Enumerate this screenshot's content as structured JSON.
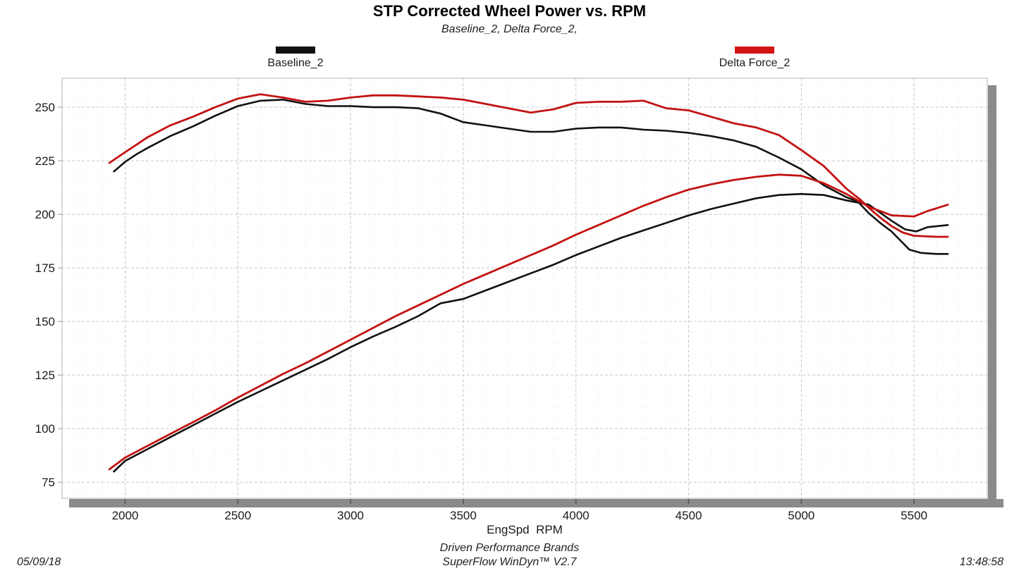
{
  "header": {
    "title": "STP Corrected Wheel Power vs. RPM",
    "subtitle": "Baseline_2, Delta Force_2,"
  },
  "legend": [
    {
      "label": "Baseline_2",
      "color": "#111111"
    },
    {
      "label": "Delta Force_2",
      "color": "#d31414"
    }
  ],
  "footer": {
    "brand_line": "Driven Performance Brands",
    "software_line": "SuperFlow WinDyn™ V2.7",
    "date": "05/09/18",
    "time": "13:48:58"
  },
  "chart_data": {
    "type": "line",
    "title": "STP Corrected Wheel Power vs. RPM",
    "subtitle": "Baseline_2, Delta Force_2,",
    "xlabel": "EngSpd  RPM",
    "ylabel": "",
    "xlim": [
      1720,
      5825
    ],
    "ylim": [
      67.5,
      263.5
    ],
    "x_ticks": [
      2000,
      2500,
      3000,
      3500,
      4000,
      4500,
      5000,
      5500
    ],
    "y_ticks": [
      75,
      100,
      125,
      150,
      175,
      200,
      225,
      250
    ],
    "x_minor_step": 100,
    "y_minor_step": 5,
    "grid": true,
    "legend_position": "top",
    "series": [
      {
        "name": "Baseline_2_upper",
        "legend": "Baseline_2",
        "color": "#111111",
        "width": 2.6,
        "points": [
          [
            1950,
            220
          ],
          [
            2000,
            224.5
          ],
          [
            2050,
            228
          ],
          [
            2100,
            231
          ],
          [
            2200,
            236.5
          ],
          [
            2300,
            241
          ],
          [
            2400,
            246
          ],
          [
            2500,
            250.5
          ],
          [
            2600,
            253
          ],
          [
            2700,
            253.5
          ],
          [
            2800,
            251.5
          ],
          [
            2900,
            250.5
          ],
          [
            3000,
            250.5
          ],
          [
            3100,
            250
          ],
          [
            3200,
            250
          ],
          [
            3300,
            249.5
          ],
          [
            3400,
            247
          ],
          [
            3450,
            245
          ],
          [
            3500,
            243
          ],
          [
            3600,
            241.5
          ],
          [
            3700,
            240
          ],
          [
            3800,
            238.5
          ],
          [
            3900,
            238.5
          ],
          [
            4000,
            240
          ],
          [
            4100,
            240.5
          ],
          [
            4200,
            240.5
          ],
          [
            4300,
            239.5
          ],
          [
            4400,
            239
          ],
          [
            4500,
            238
          ],
          [
            4600,
            236.5
          ],
          [
            4700,
            234.5
          ],
          [
            4800,
            231.5
          ],
          [
            4900,
            226.5
          ],
          [
            5000,
            221
          ],
          [
            5100,
            213.5
          ],
          [
            5200,
            208
          ],
          [
            5250,
            206
          ],
          [
            5300,
            200.5
          ],
          [
            5350,
            196
          ],
          [
            5400,
            192
          ],
          [
            5480,
            183.5
          ],
          [
            5530,
            182
          ],
          [
            5600,
            181.5
          ],
          [
            5650,
            181.5
          ]
        ]
      },
      {
        "name": "Baseline_2_lower",
        "legend": "Baseline_2",
        "color": "#111111",
        "width": 2.6,
        "points": [
          [
            1950,
            80
          ],
          [
            2000,
            85
          ],
          [
            2100,
            90.5
          ],
          [
            2200,
            96
          ],
          [
            2300,
            101.5
          ],
          [
            2400,
            107
          ],
          [
            2500,
            112.5
          ],
          [
            2600,
            117.5
          ],
          [
            2700,
            122.5
          ],
          [
            2800,
            127.5
          ],
          [
            2900,
            132.5
          ],
          [
            3000,
            138
          ],
          [
            3100,
            143
          ],
          [
            3200,
            147.5
          ],
          [
            3300,
            152.5
          ],
          [
            3400,
            158.5
          ],
          [
            3500,
            160.5
          ],
          [
            3600,
            164.5
          ],
          [
            3700,
            168.5
          ],
          [
            3800,
            172.5
          ],
          [
            3900,
            176.5
          ],
          [
            4000,
            181
          ],
          [
            4100,
            185
          ],
          [
            4200,
            189
          ],
          [
            4300,
            192.5
          ],
          [
            4400,
            196
          ],
          [
            4500,
            199.5
          ],
          [
            4600,
            202.5
          ],
          [
            4700,
            205
          ],
          [
            4800,
            207.5
          ],
          [
            4900,
            209
          ],
          [
            5000,
            209.5
          ],
          [
            5100,
            209
          ],
          [
            5200,
            206.5
          ],
          [
            5300,
            204.5
          ],
          [
            5400,
            197
          ],
          [
            5460,
            193
          ],
          [
            5510,
            192
          ],
          [
            5560,
            194
          ],
          [
            5650,
            195
          ]
        ]
      },
      {
        "name": "Delta_Force_2_upper",
        "legend": "Delta Force_2",
        "color": "#c31212",
        "width": 2.8,
        "points": [
          [
            1930,
            224
          ],
          [
            2000,
            229
          ],
          [
            2050,
            232.5
          ],
          [
            2100,
            236
          ],
          [
            2200,
            241.5
          ],
          [
            2300,
            245.5
          ],
          [
            2400,
            250
          ],
          [
            2500,
            254
          ],
          [
            2600,
            256
          ],
          [
            2700,
            254.5
          ],
          [
            2800,
            252.5
          ],
          [
            2900,
            253
          ],
          [
            3000,
            254.5
          ],
          [
            3100,
            255.5
          ],
          [
            3200,
            255.5
          ],
          [
            3300,
            255
          ],
          [
            3400,
            254.5
          ],
          [
            3500,
            253.5
          ],
          [
            3600,
            251.5
          ],
          [
            3700,
            249.5
          ],
          [
            3800,
            247.5
          ],
          [
            3900,
            249
          ],
          [
            4000,
            252
          ],
          [
            4100,
            252.5
          ],
          [
            4200,
            252.5
          ],
          [
            4300,
            253
          ],
          [
            4400,
            249.5
          ],
          [
            4500,
            248.5
          ],
          [
            4600,
            245.5
          ],
          [
            4700,
            242.5
          ],
          [
            4800,
            240.5
          ],
          [
            4900,
            237
          ],
          [
            5000,
            230
          ],
          [
            5100,
            222.5
          ],
          [
            5200,
            212
          ],
          [
            5260,
            207
          ],
          [
            5300,
            203
          ],
          [
            5350,
            198.5
          ],
          [
            5400,
            194.5
          ],
          [
            5450,
            191.5
          ],
          [
            5500,
            190
          ],
          [
            5600,
            189.5
          ],
          [
            5650,
            189.5
          ]
        ]
      },
      {
        "name": "Delta_Force_2_lower",
        "legend": "Delta Force_2",
        "color": "#c31212",
        "width": 2.8,
        "points": [
          [
            1930,
            81
          ],
          [
            2000,
            86.5
          ],
          [
            2100,
            92
          ],
          [
            2200,
            97.5
          ],
          [
            2300,
            103
          ],
          [
            2400,
            108.5
          ],
          [
            2500,
            114.5
          ],
          [
            2600,
            120
          ],
          [
            2700,
            125.5
          ],
          [
            2800,
            130.5
          ],
          [
            2900,
            136
          ],
          [
            3000,
            141.5
          ],
          [
            3100,
            147
          ],
          [
            3200,
            152.5
          ],
          [
            3300,
            157.5
          ],
          [
            3400,
            162.5
          ],
          [
            3500,
            167.5
          ],
          [
            3600,
            172
          ],
          [
            3700,
            176.5
          ],
          [
            3800,
            181
          ],
          [
            3900,
            185.5
          ],
          [
            4000,
            190.5
          ],
          [
            4100,
            195
          ],
          [
            4200,
            199.5
          ],
          [
            4300,
            204
          ],
          [
            4400,
            208
          ],
          [
            4500,
            211.5
          ],
          [
            4600,
            214
          ],
          [
            4700,
            216
          ],
          [
            4800,
            217.5
          ],
          [
            4900,
            218.5
          ],
          [
            5000,
            218
          ],
          [
            5100,
            214.5
          ],
          [
            5200,
            209.5
          ],
          [
            5300,
            203.5
          ],
          [
            5400,
            199.5
          ],
          [
            5500,
            199
          ],
          [
            5560,
            201.5
          ],
          [
            5650,
            204.5
          ]
        ]
      }
    ]
  }
}
